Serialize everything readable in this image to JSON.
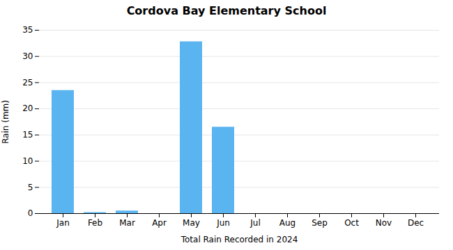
{
  "chart_data": {
    "type": "bar",
    "title": "Cordova Bay Elementary School",
    "xlabel": "Total Rain Recorded in 2024",
    "ylabel": "Rain (mm)",
    "categories": [
      "Jan",
      "Feb",
      "Mar",
      "Apr",
      "May",
      "Jun",
      "Jul",
      "Aug",
      "Sep",
      "Oct",
      "Nov",
      "Dec"
    ],
    "values": [
      23.5,
      0.2,
      0.5,
      0.0,
      32.8,
      16.5,
      0.0,
      0.0,
      0.0,
      0.0,
      0.0,
      0.0
    ],
    "color": "#5ab4f0",
    "ylim": [
      0,
      35
    ],
    "yticks": [
      0,
      5,
      10,
      15,
      20,
      25,
      30,
      35
    ],
    "grid": true
  }
}
